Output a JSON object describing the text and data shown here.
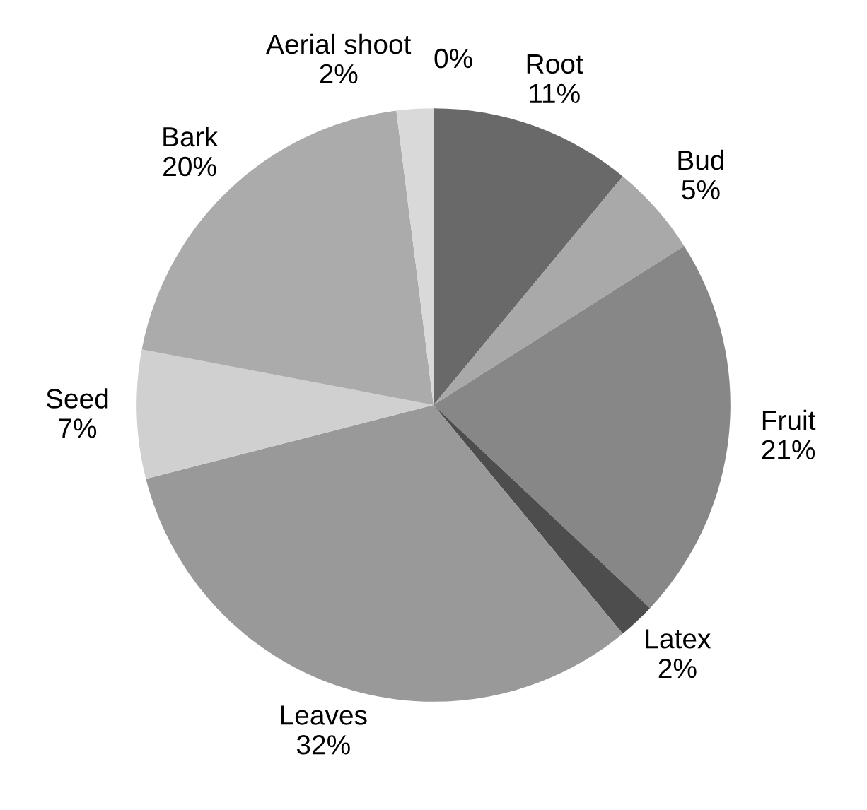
{
  "chart_data": {
    "type": "pie",
    "categories": [
      "Root",
      "Bud",
      "Fruit",
      "Latex",
      "Leaves",
      "Seed",
      "Bark",
      "Aerial shoot",
      null
    ],
    "values": [
      11,
      5,
      21,
      2,
      32,
      7,
      20,
      2,
      0
    ],
    "value_labels": [
      "11%",
      "5%",
      "21%",
      "2%",
      "32%",
      "7%",
      "20%",
      "2%",
      "0%"
    ],
    "colors": [
      "#696969",
      "#a9a9a9",
      "#878787",
      "#4d4d4d",
      "#999999",
      "#d0d0d0",
      "#ababab",
      "#d9d9d9",
      "#c0c0c0"
    ]
  }
}
